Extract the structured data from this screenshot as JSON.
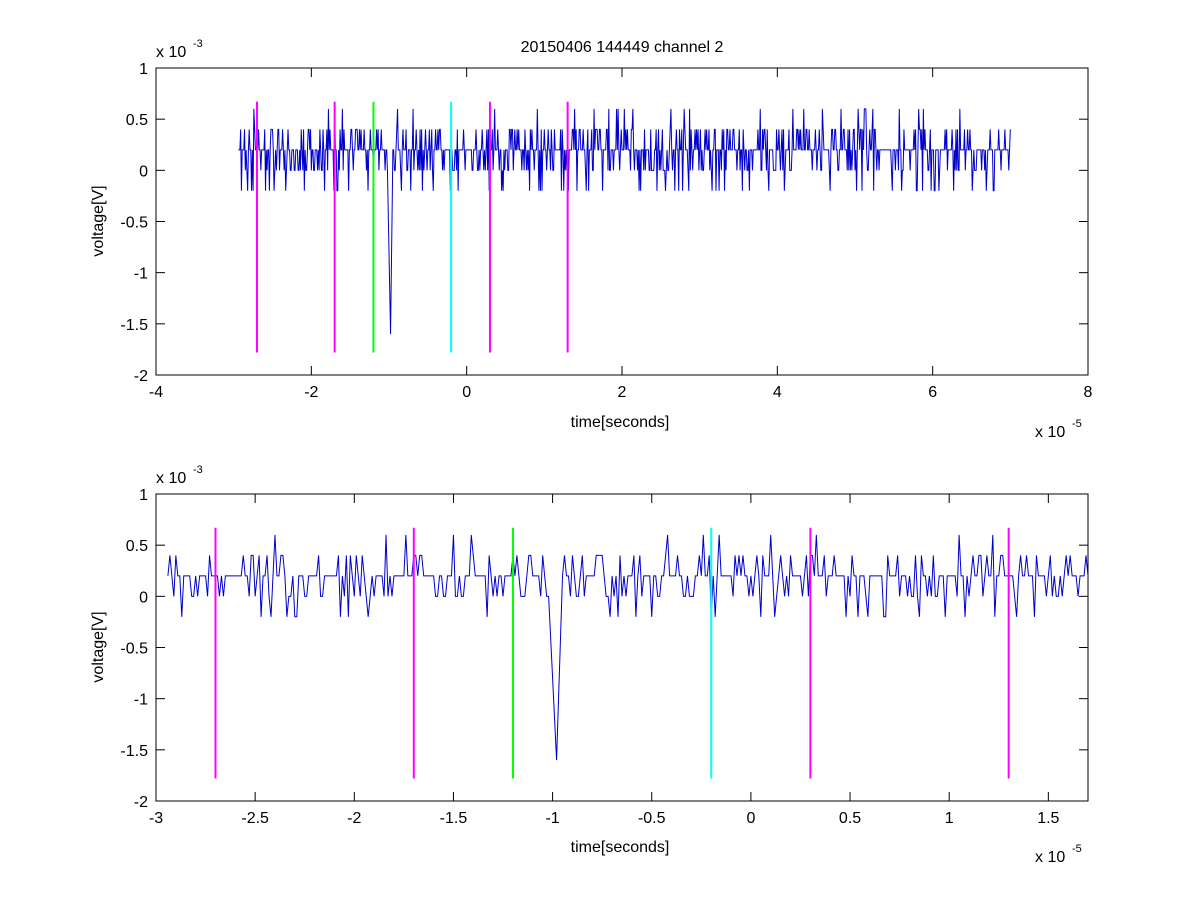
{
  "chart_data": [
    {
      "type": "line",
      "title": "20150406 144449 channel 2",
      "xlabel": "time[seconds]",
      "ylabel": "voltage[V]",
      "x_exponent_label": "x 10",
      "x_exponent": "-5",
      "y_exponent_label": "x 10",
      "y_exponent": "-3",
      "xlim": [
        -4e-05,
        8e-05
      ],
      "ylim": [
        -0.002,
        0.001
      ],
      "xticks": [
        -4e-05,
        -2e-05,
        0,
        2e-05,
        4e-05,
        6e-05,
        8e-05
      ],
      "xtick_labels": [
        "-4",
        "-2",
        "0",
        "2",
        "4",
        "6",
        "8"
      ],
      "yticks": [
        -0.002,
        -0.0015,
        -0.001,
        -0.0005,
        0,
        0.0005,
        0.001
      ],
      "ytick_labels": [
        "-2",
        "-1.5",
        "-1",
        "-0.5",
        "0",
        "0.5",
        "1"
      ],
      "grid": false,
      "series": [
        {
          "color": "#0000cc",
          "description": "noisy trace sampled every ~1e-7 s from -2.94e-05 to 7.0e-05 s",
          "x_range": [
            -2.94e-05,
            7e-05
          ],
          "baseline": 0.0002,
          "levels": [
            -0.0002,
            0,
            0.0002,
            0.0004
          ],
          "spike": {
            "x": [
              -1.02e-05,
              -1e-05,
              -9.8e-06,
              -9.6e-06
            ],
            "y": [
              0.0,
              -0.0008,
              -0.0016,
              -0.0004
            ]
          },
          "noise_end": 7e-05
        }
      ],
      "markers": [
        {
          "x": -2.7e-05,
          "y_range": [
            -0.00178,
            0.00067
          ],
          "color": "#ff00ff"
        },
        {
          "x": -1.7e-05,
          "y_range": [
            -0.00178,
            0.00067
          ],
          "color": "#ff00ff"
        },
        {
          "x": -1.2e-05,
          "y_range": [
            -0.00178,
            0.00067
          ],
          "color": "#00ff00"
        },
        {
          "x": -2e-06,
          "y_range": [
            -0.00178,
            0.00067
          ],
          "color": "#00ffff"
        },
        {
          "x": 3e-06,
          "y_range": [
            -0.00178,
            0.00067
          ],
          "color": "#ff00ff"
        },
        {
          "x": 1.3e-05,
          "y_range": [
            -0.00178,
            0.00067
          ],
          "color": "#ff00ff"
        }
      ]
    },
    {
      "type": "line",
      "title": "",
      "xlabel": "time[seconds]",
      "ylabel": "voltage[V]",
      "x_exponent_label": "x 10",
      "x_exponent": "-5",
      "y_exponent_label": "x 10",
      "y_exponent": "-3",
      "xlim": [
        -3e-05,
        1.7e-05
      ],
      "ylim": [
        -0.002,
        0.001
      ],
      "xticks": [
        -3e-05,
        -2.5e-05,
        -2e-05,
        -1.5e-05,
        -1e-05,
        -5e-06,
        0,
        5e-06,
        1e-05,
        1.5e-05
      ],
      "xtick_labels": [
        "-3",
        "-2.5",
        "-2",
        "-1.5",
        "-1",
        "-0.5",
        "0",
        "0.5",
        "1",
        "1.5"
      ],
      "yticks": [
        -0.002,
        -0.0015,
        -0.001,
        -0.0005,
        0,
        0.0005,
        0.001
      ],
      "ytick_labels": [
        "-2",
        "-1.5",
        "-1",
        "-0.5",
        "0",
        "0.5",
        "1"
      ],
      "grid": false,
      "series": [
        {
          "color": "#0000cc",
          "description": "zoomed noisy trace sampled every ~1e-7 s from -2.94e-05 to 1.7e-05 s",
          "x_range": [
            -2.94e-05,
            1.7e-05
          ],
          "baseline": 0.0002,
          "levels": [
            -0.0002,
            0,
            0.0002,
            0.0004
          ],
          "spike": {
            "x": [
              -1.02e-05,
              -1e-05,
              -9.8e-06,
              -9.6e-06
            ],
            "y": [
              0.0,
              -0.0008,
              -0.0016,
              -0.0004
            ]
          },
          "noise_end": 1.7e-05
        }
      ],
      "markers": [
        {
          "x": -2.7e-05,
          "y_range": [
            -0.00178,
            0.00067
          ],
          "color": "#ff00ff"
        },
        {
          "x": -1.7e-05,
          "y_range": [
            -0.00178,
            0.00067
          ],
          "color": "#ff00ff"
        },
        {
          "x": -1.2e-05,
          "y_range": [
            -0.00178,
            0.00067
          ],
          "color": "#00ff00"
        },
        {
          "x": -2e-06,
          "y_range": [
            -0.00178,
            0.00067
          ],
          "color": "#00ffff"
        },
        {
          "x": 3e-06,
          "y_range": [
            -0.00178,
            0.00067
          ],
          "color": "#ff00ff"
        },
        {
          "x": 1.3e-05,
          "y_range": [
            -0.00178,
            0.00067
          ],
          "color": "#ff00ff"
        }
      ]
    }
  ]
}
